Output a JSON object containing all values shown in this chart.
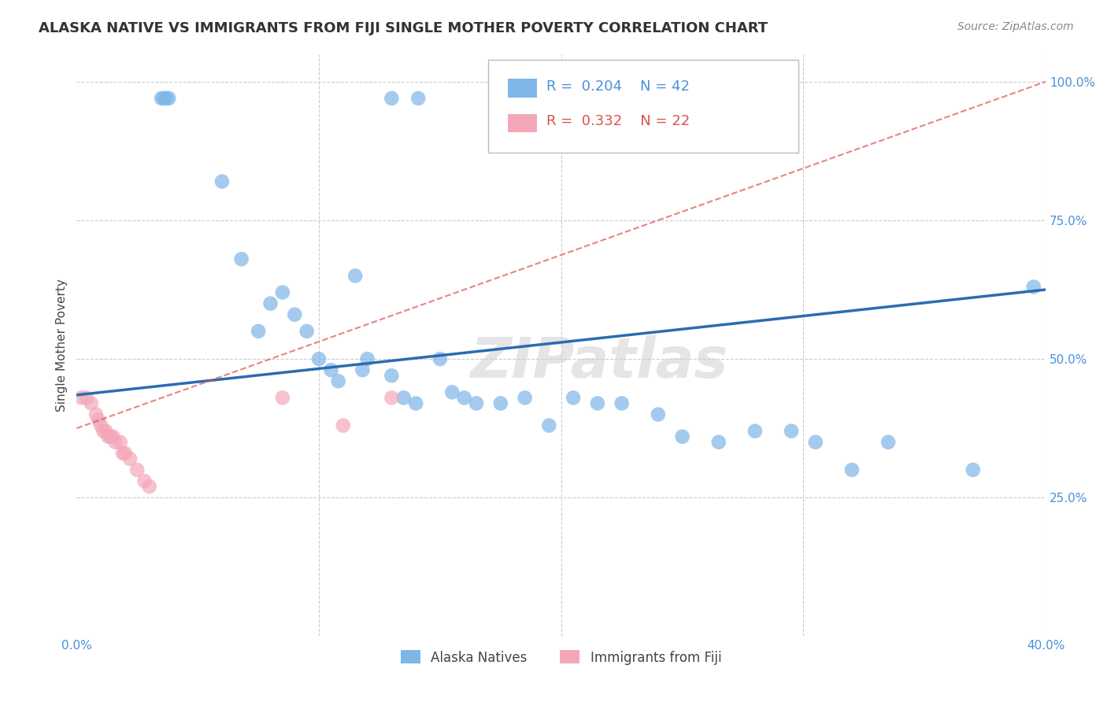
{
  "title": "ALASKA NATIVE VS IMMIGRANTS FROM FIJI SINGLE MOTHER POVERTY CORRELATION CHART",
  "source": "Source: ZipAtlas.com",
  "ylabel": "Single Mother Poverty",
  "watermark": "ZIPatlas",
  "xlim": [
    0.0,
    0.4
  ],
  "ylim": [
    0.0,
    1.05
  ],
  "alaska_color": "#7EB6E8",
  "fiji_color": "#F4A7B9",
  "alaska_R": 0.204,
  "alaska_N": 42,
  "fiji_R": 0.332,
  "fiji_N": 22,
  "trendline_alaska_color": "#2B6CB0",
  "trendline_fiji_color": "#D9534F",
  "alaska_x": [
    0.13,
    0.141,
    0.035,
    0.036,
    0.037,
    0.038,
    0.06,
    0.068,
    0.075,
    0.08,
    0.085,
    0.09,
    0.095,
    0.1,
    0.105,
    0.108,
    0.115,
    0.118,
    0.12,
    0.13,
    0.135,
    0.14,
    0.15,
    0.155,
    0.16,
    0.165,
    0.175,
    0.185,
    0.195,
    0.205,
    0.215,
    0.225,
    0.24,
    0.25,
    0.265,
    0.28,
    0.295,
    0.305,
    0.32,
    0.335,
    0.37,
    0.395
  ],
  "alaska_y": [
    0.97,
    0.97,
    0.97,
    0.97,
    0.97,
    0.97,
    0.82,
    0.68,
    0.55,
    0.6,
    0.62,
    0.58,
    0.55,
    0.5,
    0.48,
    0.46,
    0.65,
    0.48,
    0.5,
    0.47,
    0.43,
    0.42,
    0.5,
    0.44,
    0.43,
    0.42,
    0.42,
    0.43,
    0.38,
    0.43,
    0.42,
    0.42,
    0.4,
    0.36,
    0.35,
    0.37,
    0.37,
    0.35,
    0.3,
    0.35,
    0.3,
    0.63
  ],
  "fiji_x": [
    0.002,
    0.004,
    0.006,
    0.008,
    0.009,
    0.01,
    0.011,
    0.012,
    0.013,
    0.014,
    0.015,
    0.016,
    0.018,
    0.019,
    0.02,
    0.022,
    0.025,
    0.028,
    0.03,
    0.085,
    0.11,
    0.13
  ],
  "fiji_y": [
    0.43,
    0.43,
    0.42,
    0.4,
    0.39,
    0.38,
    0.37,
    0.37,
    0.36,
    0.36,
    0.36,
    0.35,
    0.35,
    0.33,
    0.33,
    0.32,
    0.3,
    0.28,
    0.27,
    0.43,
    0.38,
    0.43
  ],
  "alaska_trendline_x": [
    0.0,
    0.4
  ],
  "alaska_trendline_y": [
    0.435,
    0.625
  ],
  "fiji_trendline_x": [
    0.0,
    0.4
  ],
  "fiji_trendline_y": [
    0.375,
    1.0
  ],
  "background_color": "#FFFFFF",
  "grid_color": "#CCCCCC",
  "title_fontsize": 13,
  "axis_label_fontsize": 11,
  "tick_fontsize": 11
}
